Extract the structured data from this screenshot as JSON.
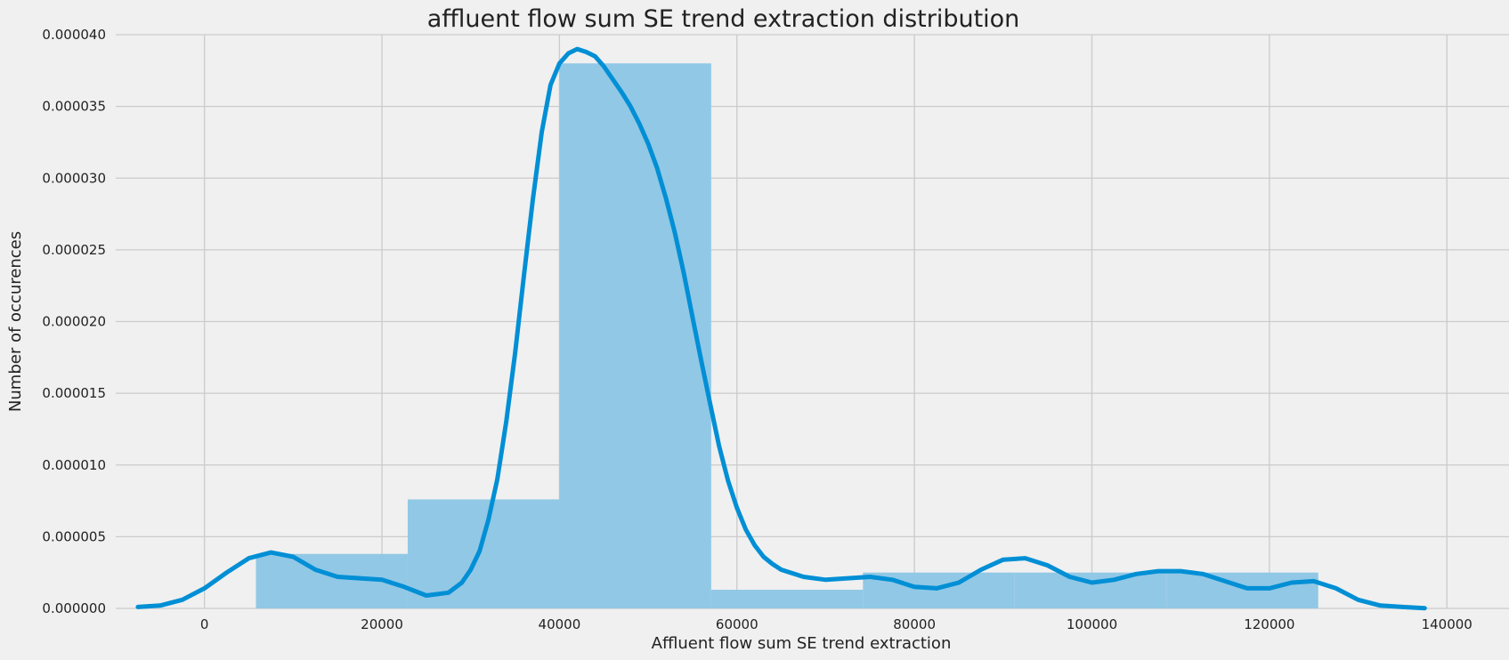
{
  "chart_data": {
    "type": "bar",
    "title": "affluent flow sum SE trend extraction distribution",
    "xlabel": "Affluent flow sum SE trend extraction",
    "ylabel": "Number of occurences",
    "xlim": [
      -10000,
      147000
    ],
    "ylim": [
      0,
      4e-05
    ],
    "grid": true,
    "x_ticks": [
      0,
      20000,
      40000,
      60000,
      80000,
      100000,
      120000,
      140000
    ],
    "y_ticks": [
      0,
      5e-06,
      1e-05,
      1.5e-05,
      2e-05,
      2.5e-05,
      3e-05,
      3.5e-05,
      4e-05
    ],
    "x_tick_labels": [
      "0",
      "20000",
      "40000",
      "60000",
      "80000",
      "100000",
      "120000",
      "140000"
    ],
    "y_tick_labels": [
      "0.000000",
      "0.000005",
      "0.000010",
      "0.000015",
      "0.000020",
      "0.000025",
      "0.000030",
      "0.000035",
      "0.000040"
    ],
    "colors": {
      "bar": "#91c8e6",
      "kde": "#008fd5",
      "background": "#f0f0f0",
      "grid": "#cbcbcb"
    },
    "histogram": {
      "bin_edges": [
        5800,
        22900,
        40000,
        57100,
        74200,
        91300,
        108400,
        125500
      ],
      "values": [
        3.8e-06,
        7.6e-06,
        3.8e-05,
        1.3e-06,
        2.5e-06,
        2.5e-06,
        2.5e-06
      ]
    },
    "kde": {
      "x": [
        -7500,
        -5000,
        -2500,
        0,
        2500,
        5000,
        7500,
        10000,
        12500,
        15000,
        17500,
        20000,
        22500,
        25000,
        27500,
        29000,
        30000,
        31000,
        32000,
        33000,
        34000,
        35000,
        36000,
        37000,
        38000,
        39000,
        40000,
        41000,
        42000,
        43000,
        44000,
        45000,
        46000,
        47000,
        48000,
        49000,
        50000,
        51000,
        52000,
        53000,
        54000,
        55000,
        56000,
        57000,
        58000,
        59000,
        60000,
        61000,
        62000,
        63000,
        64000,
        65000,
        67500,
        70000,
        72500,
        75000,
        77500,
        80000,
        82500,
        85000,
        87500,
        90000,
        92500,
        95000,
        97500,
        100000,
        102500,
        105000,
        107500,
        110000,
        112500,
        115000,
        117500,
        120000,
        122500,
        125000,
        127500,
        130000,
        132500,
        135000,
        137500
      ],
      "y": [
        1e-07,
        2e-07,
        6e-07,
        1.4e-06,
        2.5e-06,
        3.5e-06,
        3.9e-06,
        3.6e-06,
        2.7e-06,
        2.2e-06,
        2.1e-06,
        2e-06,
        1.5e-06,
        9e-07,
        1.1e-06,
        1.8e-06,
        2.7e-06,
        4e-06,
        6.2e-06,
        9e-06,
        1.3e-05,
        1.78e-05,
        2.32e-05,
        2.85e-05,
        3.32e-05,
        3.65e-05,
        3.8e-05,
        3.87e-05,
        3.9e-05,
        3.88e-05,
        3.85e-05,
        3.78e-05,
        3.69e-05,
        3.6e-05,
        3.5e-05,
        3.38e-05,
        3.24e-05,
        3.07e-05,
        2.86e-05,
        2.62e-05,
        2.34e-05,
        2.03e-05,
        1.72e-05,
        1.42e-05,
        1.13e-05,
        8.9e-06,
        7e-06,
        5.5e-06,
        4.4e-06,
        3.6e-06,
        3.1e-06,
        2.7e-06,
        2.2e-06,
        2e-06,
        2.1e-06,
        2.2e-06,
        2e-06,
        1.5e-06,
        1.4e-06,
        1.8e-06,
        2.7e-06,
        3.4e-06,
        3.5e-06,
        3e-06,
        2.2e-06,
        1.8e-06,
        2e-06,
        2.4e-06,
        2.6e-06,
        2.6e-06,
        2.4e-06,
        1.9e-06,
        1.4e-06,
        1.4e-06,
        1.8e-06,
        1.9e-06,
        1.4e-06,
        6e-07,
        2e-07,
        1e-07,
        2e-08
      ]
    }
  }
}
